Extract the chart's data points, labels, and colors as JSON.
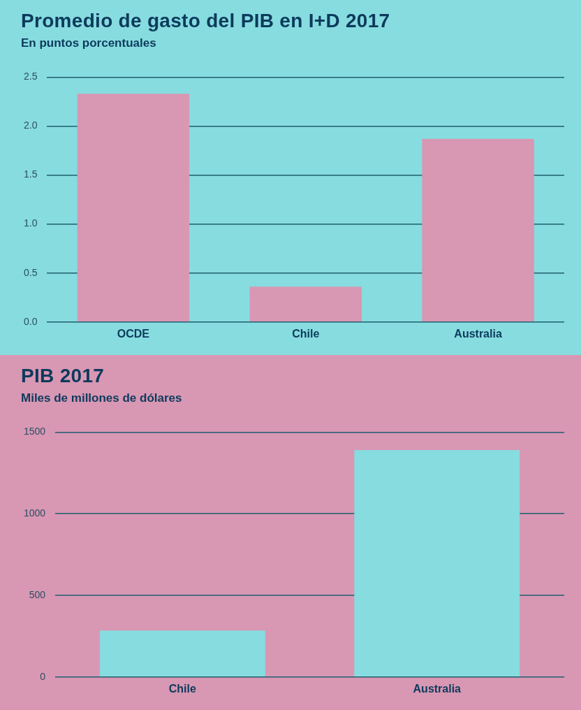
{
  "chart_data": [
    {
      "type": "bar",
      "title": "Promedio de gasto del PIB en I+D 2017",
      "subtitle": "En puntos porcentuales",
      "categories": [
        "OCDE",
        "Chile",
        "Australia"
      ],
      "values": [
        2.33,
        0.36,
        1.87
      ],
      "color": "#d897b3",
      "ylim": [
        0,
        2.5
      ],
      "yticks": [
        {
          "value": 0,
          "label": "0.0"
        },
        {
          "value": 0.5,
          "label": "0.5"
        },
        {
          "value": 1,
          "label": "1.0"
        },
        {
          "value": 1.5,
          "label": "1.5"
        },
        {
          "value": 2,
          "label": "2.0"
        },
        {
          "value": 2.5,
          "label": "2.5"
        }
      ],
      "grid": "y",
      "legend": false
    },
    {
      "type": "bar",
      "title": "PIB 2017",
      "subtitle": "Miles de millones de dólares",
      "categories": [
        "Chile",
        "Australia"
      ],
      "values": [
        285,
        1390
      ],
      "color": "#87dcdf",
      "ylim": [
        0,
        1500
      ],
      "yticks": [
        0,
        500,
        1000,
        1500
      ],
      "grid": "y",
      "legend": false
    }
  ]
}
